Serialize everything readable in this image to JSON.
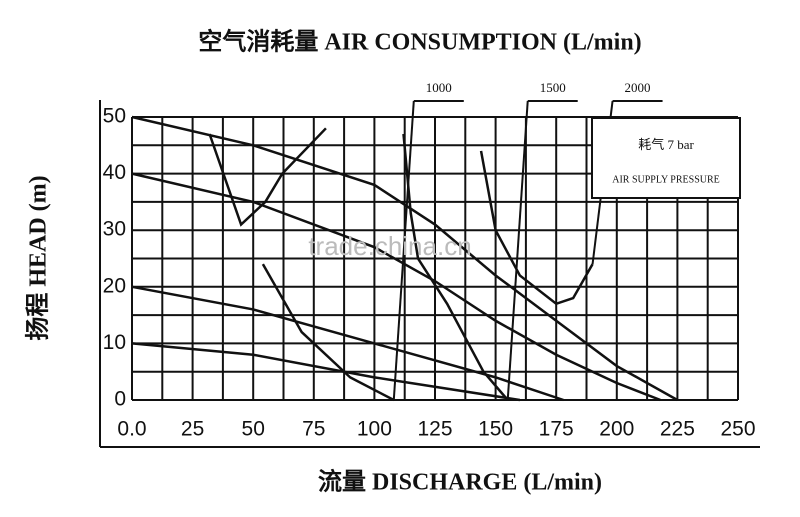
{
  "chart_data": {
    "type": "line",
    "title": "空气消耗量 AIR CONSUMPTION (L/min)",
    "x_label": "流量 DISCHARGE (L/min)",
    "y_label": "扬程 HEAD (m)",
    "annotation_lines": [
      "耗气 7 bar",
      "AIR SUPPLY PRESSURE"
    ],
    "watermark": "trade.china.cn",
    "xlim": [
      0,
      250
    ],
    "xticks": [
      {
        "value": 0,
        "label": "0.0"
      },
      25,
      50,
      75,
      100,
      125,
      150,
      175,
      200,
      225,
      250
    ],
    "xminor": [
      12.5,
      37.5,
      62.5,
      87.5,
      112.5,
      137.5,
      162.5,
      187.5,
      212.5,
      237.5
    ],
    "ylim": [
      0,
      50
    ],
    "yticks": [
      0,
      10,
      20,
      30,
      40,
      50
    ],
    "yminor": [
      5,
      15,
      25,
      35,
      45
    ],
    "grid": true,
    "series": [
      {
        "color": "#111",
        "x": [
          0,
          50,
          100,
          125,
          150,
          175,
          200,
          225
        ],
        "values": [
          50,
          45,
          38,
          31,
          22,
          14,
          6,
          0
        ]
      },
      {
        "color": "#111",
        "x": [
          0,
          50,
          100,
          125,
          150,
          175,
          200,
          218
        ],
        "values": [
          40,
          35,
          27,
          21,
          14,
          8,
          3,
          0
        ]
      },
      {
        "color": "#111",
        "x": [
          0,
          50,
          100,
          150,
          178
        ],
        "values": [
          20,
          16,
          10,
          4,
          0
        ]
      },
      {
        "color": "#111",
        "x": [
          0,
          50,
          100,
          160
        ],
        "values": [
          10,
          8,
          4,
          0
        ]
      },
      {
        "name": "1000",
        "color": "#111",
        "x": [
          32,
          45,
          55,
          62,
          80,
          null,
          54,
          70,
          90,
          108
        ],
        "values": [
          47,
          31,
          35,
          40,
          48,
          null,
          24,
          12,
          4,
          0
        ]
      },
      {
        "name": "1500",
        "color": "#111",
        "x": [
          112,
          115,
          118,
          130,
          145,
          155
        ],
        "values": [
          47,
          33,
          25,
          17,
          5,
          0
        ]
      },
      {
        "name": "2000",
        "color": "#111",
        "x": [
          144,
          150,
          160,
          175,
          182,
          190
        ],
        "values": [
          44,
          30,
          22,
          17,
          18,
          24
        ]
      }
    ]
  }
}
